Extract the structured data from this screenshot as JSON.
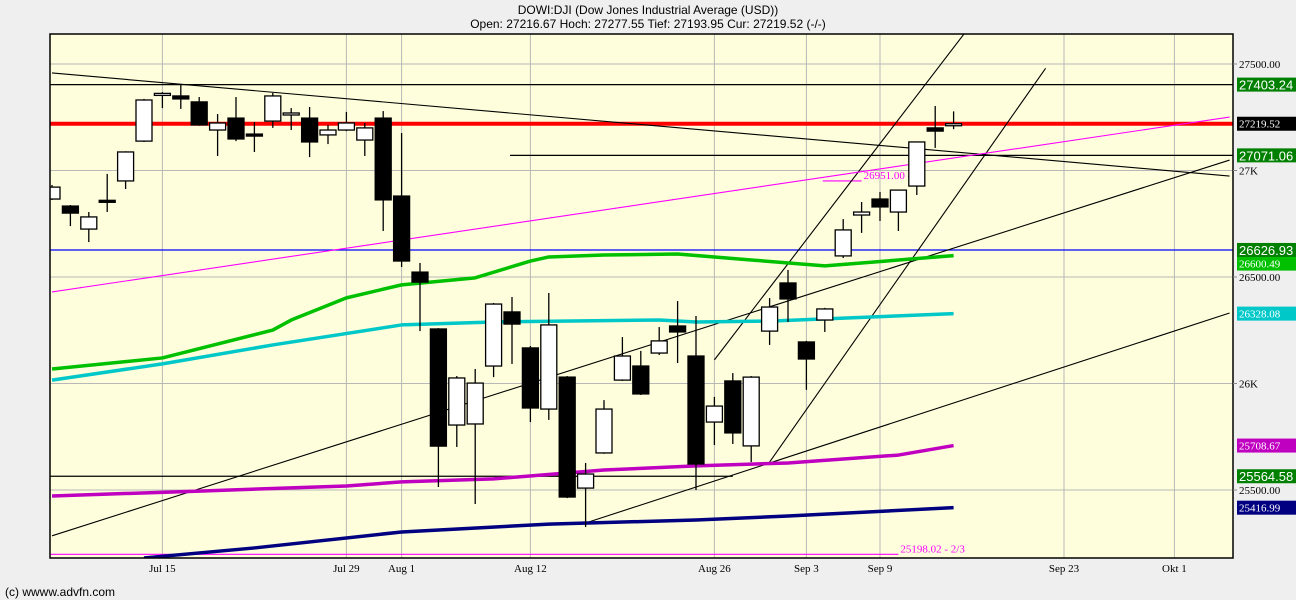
{
  "header": {
    "title": "DOWI:DJI (Dow Jones Industrial Average (USD))",
    "quote": "Open: 27216.67 Hoch: 27277.55 Tief: 27193.95 Cur: 27219.52 (-/-)"
  },
  "footer": {
    "copyright": "(c) wwww.advfn.com"
  },
  "chart_data": {
    "type": "candlestick",
    "title": "DOWI:DJI (Dow Jones Industrial Average (USD))",
    "ylim": [
      25100,
      27650
    ],
    "y_axis_position": "right",
    "grid": true,
    "candle_format": [
      "date",
      "open",
      "high",
      "low",
      "close"
    ],
    "candles": [
      [
        "2019-07-05",
        26866,
        26932,
        26862,
        26922
      ],
      [
        "2019-07-08",
        26833,
        26838,
        26739,
        26800
      ],
      [
        "2019-07-09",
        26725,
        26805,
        26664,
        26782
      ],
      [
        "2019-07-10",
        26860,
        26984,
        26805,
        26855
      ],
      [
        "2019-07-11",
        26951,
        27090,
        26913,
        27087
      ],
      [
        "2019-07-12",
        27138,
        27336,
        27134,
        27331
      ],
      [
        "2019-07-15",
        27359,
        27368,
        27293,
        27362
      ],
      [
        "2019-07-16",
        27350,
        27401,
        27289,
        27336
      ],
      [
        "2019-07-17",
        27322,
        27345,
        27210,
        27214
      ],
      [
        "2019-07-18",
        27190,
        27265,
        27068,
        27223
      ],
      [
        "2019-07-19",
        27246,
        27345,
        27138,
        27148
      ],
      [
        "2019-07-22",
        27171,
        27228,
        27087,
        27168
      ],
      [
        "2019-07-23",
        27232,
        27364,
        27200,
        27350
      ],
      [
        "2019-07-24",
        27261,
        27293,
        27190,
        27270
      ],
      [
        "2019-07-25",
        27246,
        27298,
        27063,
        27134
      ],
      [
        "2019-07-26",
        27167,
        27214,
        27124,
        27190
      ],
      [
        "2019-07-29",
        27190,
        27275,
        27185,
        27223
      ],
      [
        "2019-07-30",
        27143,
        27223,
        27068,
        27200
      ],
      [
        "2019-07-31",
        27246,
        27279,
        26716,
        26862
      ],
      [
        "2019-08-01",
        26880,
        27176,
        26547,
        26575
      ],
      [
        "2019-08-02",
        26523,
        26566,
        26246,
        26476
      ],
      [
        "2019-08-05",
        26256,
        26260,
        25514,
        25706
      ],
      [
        "2019-08-06",
        25805,
        26035,
        25702,
        26026
      ],
      [
        "2019-08-07",
        25810,
        26068,
        25434,
        26002
      ],
      [
        "2019-08-08",
        26082,
        26378,
        26030,
        26373
      ],
      [
        "2019-08-09",
        26336,
        26406,
        26092,
        26279
      ],
      [
        "2019-08-12",
        26167,
        26176,
        25819,
        25885
      ],
      [
        "2019-08-13",
        25880,
        26425,
        25829,
        26275
      ],
      [
        "2019-08-14",
        26030,
        26035,
        25462,
        25467
      ],
      [
        "2019-08-15",
        25509,
        25627,
        25326,
        25575
      ],
      [
        "2019-08-16",
        25674,
        25922,
        25670,
        25880
      ],
      [
        "2019-08-19",
        26016,
        26218,
        26012,
        26129
      ],
      [
        "2019-08-20",
        26082,
        26153,
        25946,
        25951
      ],
      [
        "2019-08-21",
        26143,
        26265,
        26134,
        26200
      ],
      [
        "2019-08-22",
        26270,
        26387,
        26096,
        26242
      ],
      [
        "2019-08-23",
        26129,
        26317,
        25500,
        25622
      ],
      [
        "2019-08-26",
        25819,
        25937,
        25711,
        25894
      ],
      [
        "2019-08-27",
        26012,
        26049,
        25716,
        25768
      ],
      [
        "2019-08-28",
        25707,
        26035,
        25631,
        26030
      ],
      [
        "2019-08-29",
        26246,
        26401,
        26181,
        26359
      ],
      [
        "2019-08-30",
        26472,
        26533,
        26289,
        26397
      ],
      [
        "2019-09-03",
        26195,
        26200,
        25970,
        26115
      ],
      [
        "2019-09-04",
        26298,
        26355,
        26242,
        26350
      ],
      [
        "2019-09-05",
        26599,
        26772,
        26589,
        26721
      ],
      [
        "2019-09-06",
        26791,
        26852,
        26707,
        26805
      ],
      [
        "2019-09-09",
        26866,
        26899,
        26763,
        26829
      ],
      [
        "2019-09-10",
        26805,
        26910,
        26716,
        26908
      ],
      [
        "2019-09-11",
        26927,
        27135,
        26885,
        27134
      ],
      [
        "2019-09-12",
        27200,
        27303,
        27106,
        27185
      ],
      [
        "2019-09-13",
        27216.67,
        27277.55,
        27193.95,
        27219.52
      ]
    ],
    "moving_averages": [
      {
        "color": "#00c000",
        "last": "26600.49",
        "points": [
          [
            "2019-07-05",
            26068
          ],
          [
            "2019-07-15",
            26120
          ],
          [
            "2019-07-23",
            26251
          ],
          [
            "2019-07-24",
            26298
          ],
          [
            "2019-07-29",
            26402
          ],
          [
            "2019-08-01",
            26463
          ],
          [
            "2019-08-07",
            26496
          ],
          [
            "2019-08-12",
            26575
          ],
          [
            "2019-08-13",
            26594
          ],
          [
            "2019-08-16",
            26603
          ],
          [
            "2019-08-22",
            26608
          ],
          [
            "2019-08-28",
            26580
          ],
          [
            "2019-09-04",
            26552
          ],
          [
            "2019-09-13",
            26600.49
          ]
        ]
      },
      {
        "color": "#00c8c8",
        "last": "26328.08",
        "points": [
          [
            "2019-07-05",
            26016
          ],
          [
            "2019-07-15",
            26092
          ],
          [
            "2019-07-23",
            26181
          ],
          [
            "2019-08-01",
            26275
          ],
          [
            "2019-08-08",
            26289
          ],
          [
            "2019-08-21",
            26298
          ],
          [
            "2019-08-23",
            26289
          ],
          [
            "2019-08-29",
            26293
          ],
          [
            "2019-09-13",
            26328.08
          ]
        ]
      },
      {
        "color": "#c000c0",
        "last": "25708.67",
        "points": [
          [
            "2019-07-05",
            25472
          ],
          [
            "2019-07-17",
            25495
          ],
          [
            "2019-07-29",
            25519
          ],
          [
            "2019-08-01",
            25538
          ],
          [
            "2019-08-08",
            25552
          ],
          [
            "2019-08-16",
            25594
          ],
          [
            "2019-08-23",
            25613
          ],
          [
            "2019-08-30",
            25627
          ],
          [
            "2019-09-10",
            25664
          ],
          [
            "2019-09-13",
            25708.67
          ]
        ]
      },
      {
        "color": "#000080",
        "last": "25416.99",
        "points": [
          [
            "2019-07-12",
            25181
          ],
          [
            "2019-07-22",
            25228
          ],
          [
            "2019-08-01",
            25303
          ],
          [
            "2019-08-13",
            25340
          ],
          [
            "2019-08-23",
            25359
          ],
          [
            "2019-08-30",
            25378
          ],
          [
            "2019-09-13",
            25416.99
          ]
        ]
      }
    ],
    "horizontal_lines": [
      {
        "value": 27403.24,
        "color": "#000000",
        "from": "2019-07-05"
      },
      {
        "value": 27219.52,
        "color": "#ff0000",
        "from": "2019-07-05",
        "thick": true
      },
      {
        "value": 27071.06,
        "color": "#000000",
        "from": "2019-08-09"
      },
      {
        "value": 26626.93,
        "color": "#0000ff",
        "from": "2019-07-05"
      },
      {
        "value": 25564.58,
        "color": "#000000",
        "from": "2019-07-05",
        "to": "2019-08-27"
      },
      {
        "value": 26951.0,
        "color": "#ff00ff",
        "from": "2019-09-04",
        "to": "2019-09-06"
      },
      {
        "value": 25198.02,
        "color": "#ff00ff",
        "from": "2019-07-05",
        "to": "2019-09-10"
      }
    ],
    "line_annotations": [
      {
        "text": "26951.00 - 1",
        "value": 26951.0,
        "date": "2019-09-06",
        "color": "#ff00ff"
      },
      {
        "text": "25198.02 - 2/3",
        "value": 25198.02,
        "date": "2019-09-10",
        "color": "#ff00ff"
      }
    ],
    "trend_lines": [
      {
        "color": "#000000",
        "p1": [
          "2019-07-05",
          27458
        ],
        "p2": [
          "2019-10-04",
          26974
        ]
      },
      {
        "color": "#000000",
        "p1": [
          "2019-07-05",
          25285
        ],
        "p2": [
          "2019-10-04",
          27049
        ]
      },
      {
        "color": "#000000",
        "p1": [
          "2019-08-15",
          25345
        ],
        "p2": [
          "2019-10-04",
          26331
        ]
      },
      {
        "color": "#000000",
        "p1": [
          "2019-08-26",
          26111
        ],
        "p2": [
          "2019-09-16",
          27690
        ]
      },
      {
        "color": "#000000",
        "p1": [
          "2019-08-29",
          25631
        ],
        "p2": [
          "2019-09-20",
          27480
        ]
      },
      {
        "color": "#ff00ff",
        "p1": [
          "2019-07-05",
          26430
        ],
        "p2": [
          "2019-10-04",
          27251
        ]
      }
    ],
    "y_ticks": [
      {
        "value": 27500,
        "label": "27500.00"
      },
      {
        "value": 27000,
        "label": "27K"
      },
      {
        "value": 26500,
        "label": "26500.00"
      },
      {
        "value": 26000,
        "label": "26K"
      },
      {
        "value": 25500,
        "label": "25500.00"
      }
    ],
    "x_ticks": [
      {
        "date": "2019-07-15",
        "label": "Jul 15"
      },
      {
        "date": "2019-07-29",
        "label": "Jul 29"
      },
      {
        "date": "2019-08-01",
        "label": "Aug 1"
      },
      {
        "date": "2019-08-12",
        "label": "Aug 12"
      },
      {
        "date": "2019-08-26",
        "label": "Aug 26"
      },
      {
        "date": "2019-09-03",
        "label": "Sep 3"
      },
      {
        "date": "2019-09-09",
        "label": "Sep 9"
      },
      {
        "date": "2019-09-23",
        "label": "Sep 23"
      },
      {
        "date": "2019-10-01",
        "label": "Okt 1"
      }
    ],
    "price_labels": [
      {
        "text": "27403.24",
        "value": 27403.24,
        "bg": "#008000",
        "big": true
      },
      {
        "text": "27219.52",
        "value": 27219.52,
        "bg": "#000000"
      },
      {
        "text": "27071.06",
        "value": 27071.06,
        "bg": "#008000",
        "big": true
      },
      {
        "text": "26600.49",
        "value": 26600.49,
        "bg": "#00c000",
        "offset": 8
      },
      {
        "text": "26626.93",
        "value": 26626.93,
        "bg": "#008000",
        "big": true
      },
      {
        "text": "26328.08",
        "value": 26328.08,
        "bg": "#00c8c8"
      },
      {
        "text": "25708.67",
        "value": 25708.67,
        "bg": "#c000c0"
      },
      {
        "text": "25564.58",
        "value": 25564.58,
        "bg": "#008000",
        "big": true
      },
      {
        "text": "25416.99",
        "value": 25416.99,
        "bg": "#000080"
      }
    ]
  }
}
